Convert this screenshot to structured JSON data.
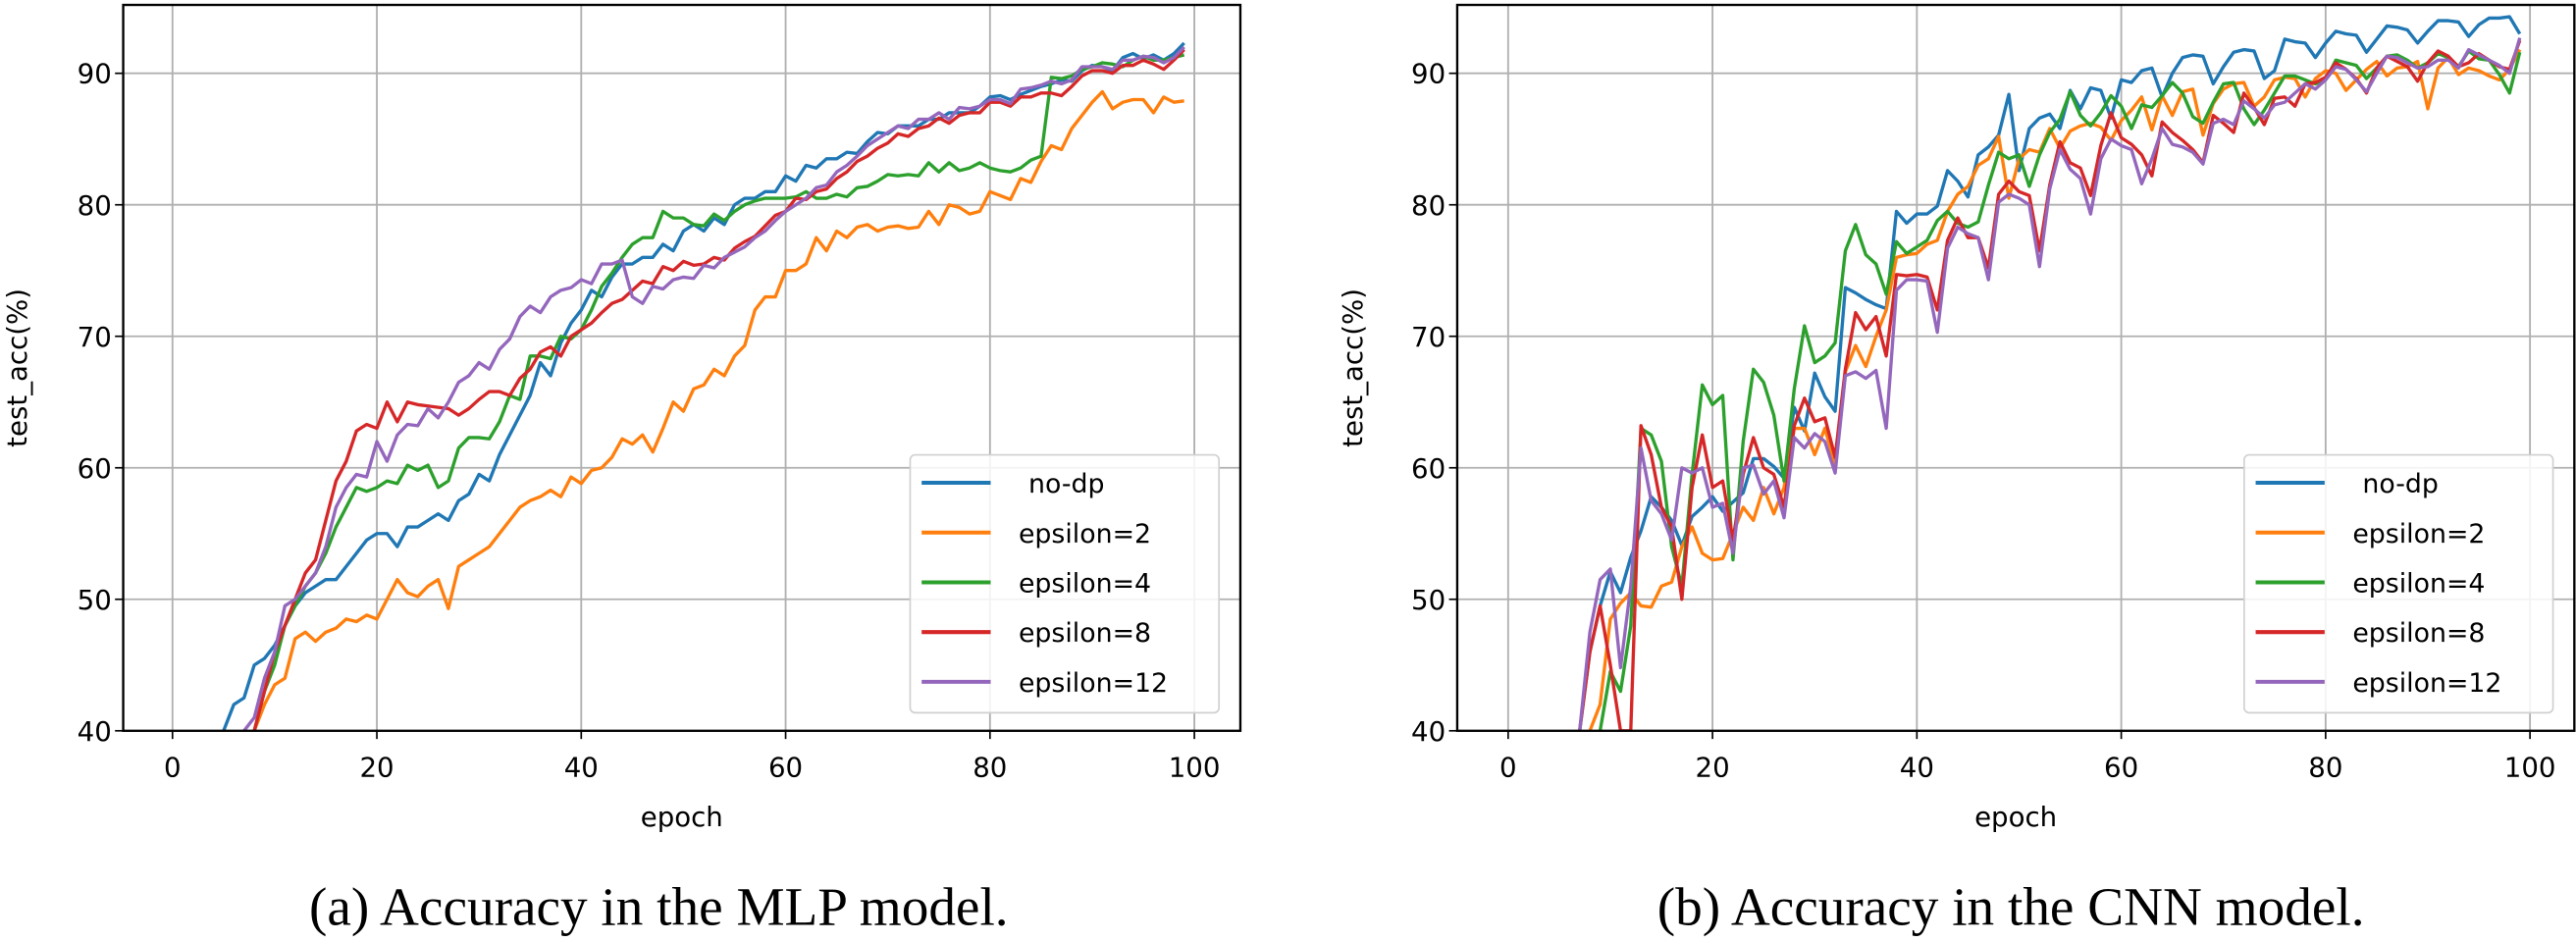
{
  "chart_data": [
    {
      "type": "line",
      "caption": "(a) Accuracy in the MLP model.",
      "xlabel": "epoch",
      "ylabel": "test_acc(%)",
      "xlim": [
        -4.95,
        103.95
      ],
      "ylim": [
        40,
        95.2
      ],
      "xticks": [
        0,
        20,
        40,
        60,
        80,
        100
      ],
      "yticks": [
        40,
        50,
        60,
        70,
        80,
        90
      ],
      "grid": true,
      "legend_position": "lower-right",
      "series": [
        {
          "name": "no-dp",
          "color": "#1f77b4",
          "start": 5,
          "values": [
            40,
            42,
            42.5,
            45,
            45.5,
            46.5,
            48,
            49.5,
            50.5,
            51,
            51.5,
            51.5,
            52.5,
            53.5,
            54.5,
            55,
            55,
            54,
            55.5,
            55.5,
            56,
            56.5,
            56,
            57.5,
            58,
            59.5,
            59,
            61,
            62.5,
            64,
            65.5,
            68,
            67,
            69.5,
            71,
            72,
            73.5,
            73,
            74.5,
            75.5,
            75.5,
            76,
            76,
            77,
            76.5,
            78,
            78.5,
            78,
            79,
            78.5,
            80,
            80.5,
            80.5,
            81,
            81,
            82.2,
            81.8,
            83,
            82.8,
            83.5,
            83.5,
            84,
            83.9,
            84.8,
            85.5,
            85.4,
            86,
            86,
            86,
            86.5,
            86.5,
            87,
            87,
            87,
            87.5,
            88.2,
            88.3,
            88,
            88.4,
            88.7,
            89,
            89.2,
            89.5,
            89.4,
            90.2,
            90.6,
            90.5,
            90.2,
            91.2,
            91.5,
            91.1,
            91.4,
            91,
            91.5,
            92.3
          ]
        },
        {
          "name": "epsilon=2",
          "color": "#ff7f0e",
          "start": 8,
          "values": [
            40,
            42,
            43.5,
            44,
            47,
            47.5,
            46.8,
            47.5,
            47.8,
            48.5,
            48.3,
            48.8,
            48.5,
            50,
            51.5,
            50.5,
            50.2,
            51,
            51.5,
            49.3,
            52.5,
            53,
            53.5,
            54,
            55,
            56,
            57,
            57.5,
            57.8,
            58.3,
            57.8,
            59.3,
            58.8,
            59.8,
            60,
            60.8,
            62.2,
            61.8,
            62.5,
            61.2,
            63,
            65,
            64.3,
            66,
            66.3,
            67.5,
            67,
            68.5,
            69.3,
            72,
            73,
            73,
            75,
            75,
            75.5,
            77.5,
            76.5,
            78,
            77.5,
            78.3,
            78.5,
            78,
            78.3,
            78.4,
            78.2,
            78.3,
            79.5,
            78.5,
            80,
            79.8,
            79.3,
            79.5,
            81,
            80.7,
            80.4,
            82,
            81.7,
            83.3,
            84.5,
            84.2,
            85.8,
            86.8,
            87.8,
            88.6,
            87.3,
            87.8,
            88,
            88,
            87,
            88.2,
            87.8,
            87.9
          ]
        },
        {
          "name": "epsilon=4",
          "color": "#2ca02c",
          "start": 8,
          "values": [
            40,
            43,
            45,
            48,
            49.5,
            51,
            52,
            53.5,
            55.5,
            57,
            58.5,
            58.2,
            58.5,
            59,
            58.8,
            60.2,
            59.8,
            60.2,
            58.5,
            59,
            61.5,
            62.3,
            62.3,
            62.2,
            63.5,
            65.5,
            65.2,
            68.5,
            68.5,
            68.3,
            70,
            69.8,
            70.5,
            72,
            73.8,
            74.8,
            76,
            77,
            77.5,
            77.5,
            79.5,
            79,
            79,
            78.5,
            78.4,
            79.3,
            78.8,
            79.5,
            80,
            80.3,
            80.5,
            80.5,
            80.5,
            80.6,
            81,
            80.5,
            80.5,
            80.8,
            80.6,
            81.3,
            81.4,
            81.8,
            82.3,
            82.2,
            82.3,
            82.2,
            83.2,
            82.5,
            83.2,
            82.6,
            82.8,
            83.2,
            82.8,
            82.6,
            82.5,
            82.8,
            83.4,
            83.7,
            89.7,
            89.6,
            89.8,
            90.3,
            90.5,
            90.8,
            90.7,
            90.5,
            91,
            91.3,
            91,
            91,
            91.2,
            91.4
          ]
        },
        {
          "name": "epsilon=8",
          "color": "#d62728",
          "start": 8,
          "values": [
            40,
            43,
            46,
            48,
            50,
            52,
            53,
            56,
            59,
            60.5,
            62.8,
            63.3,
            63,
            65,
            63.5,
            65,
            64.8,
            64.7,
            64.6,
            64.5,
            64,
            64.5,
            65.2,
            65.8,
            65.8,
            65.5,
            66.8,
            67.5,
            68.8,
            69.2,
            68.5,
            70,
            70.5,
            71,
            71.8,
            72.5,
            72.8,
            73.5,
            74.2,
            74,
            75.3,
            75,
            75.7,
            75.4,
            75.5,
            76,
            75.8,
            76.7,
            77.2,
            77.6,
            78.4,
            79.2,
            79.5,
            80.5,
            80.4,
            81,
            81.2,
            82,
            82.5,
            83.3,
            83.7,
            84.3,
            84.7,
            85.4,
            85.2,
            85.8,
            86,
            86.6,
            86.2,
            86.8,
            87,
            87,
            87.8,
            87.8,
            87.5,
            88.2,
            88.2,
            88.5,
            88.5,
            88.3,
            89,
            89.8,
            90.2,
            90.2,
            90,
            90.6,
            90.6,
            91,
            90.7,
            90.3,
            91,
            91.8
          ]
        },
        {
          "name": "epsilon=12",
          "color": "#9467bd",
          "start": 7,
          "values": [
            40,
            41,
            44,
            46,
            49.5,
            50,
            51,
            52,
            54,
            57,
            58.5,
            59.5,
            59.3,
            62,
            60.5,
            62.5,
            63.3,
            63.2,
            64.5,
            63.8,
            65,
            66.5,
            67,
            68,
            67.5,
            69,
            69.8,
            71.5,
            72.3,
            71.8,
            73,
            73.5,
            73.7,
            74.3,
            74,
            75.5,
            75.5,
            75.8,
            73,
            72.5,
            73.8,
            73.6,
            74.3,
            74.5,
            74.4,
            75.4,
            75.2,
            76,
            76.4,
            76.8,
            77.5,
            78,
            78.8,
            79.5,
            80,
            80.5,
            81.3,
            81.5,
            82.5,
            83,
            83.7,
            84.5,
            85,
            85.5,
            86,
            85.8,
            86.5,
            86.5,
            87,
            86.5,
            87.4,
            87.3,
            87.5,
            88,
            88,
            87.7,
            88.8,
            88.9,
            89.1,
            89.4,
            89.2,
            89.5,
            90.5,
            90.5,
            90.5,
            90.3,
            91,
            91,
            91.3,
            91.2,
            90.8,
            91.2,
            92
          ]
        }
      ]
    },
    {
      "type": "line",
      "caption": "(b) Accuracy in the CNN model.",
      "xlabel": "epoch",
      "ylabel": "test_acc(%)",
      "xlim": [
        -4.95,
        103.95
      ],
      "ylim": [
        40,
        95.2
      ],
      "xticks": [
        0,
        20,
        40,
        60,
        80,
        100
      ],
      "yticks": [
        40,
        50,
        60,
        70,
        80,
        90
      ],
      "grid": true,
      "legend_position": "lower-right",
      "series": [
        {
          "name": "no-dp",
          "color": "#1f77b4",
          "start": 7,
          "values": [
            40,
            46,
            49.5,
            52.1,
            50.5,
            53.2,
            55.2,
            57.8,
            57,
            56,
            54.1,
            56.3,
            57,
            57.8,
            56.7,
            57.4,
            58.1,
            60.7,
            60.7,
            60.1,
            59.2,
            64.6,
            62.8,
            67.2,
            65.4,
            64.3,
            73.7,
            73.3,
            72.8,
            72.4,
            72.1,
            79.5,
            78.6,
            79.3,
            79.3,
            79.9,
            82.6,
            81.8,
            80.6,
            83.8,
            84.4,
            85.3,
            88.4,
            82.6,
            85.8,
            86.6,
            86.9,
            85.8,
            88.7,
            87.3,
            88.9,
            88.7,
            86.6,
            89.5,
            89.3,
            90.2,
            90.4,
            88.2,
            90,
            91.2,
            91.4,
            91.3,
            89.2,
            90.5,
            91.6,
            91.8,
            91.7,
            89.6,
            90.2,
            92.6,
            92.4,
            92.3,
            91.2,
            92.3,
            93.2,
            93,
            92.9,
            91.6,
            92.6,
            93.6,
            93.5,
            93.3,
            92.3,
            93.2,
            94,
            94,
            93.9,
            92.8,
            93.7,
            94.2,
            94.2,
            94.3,
            93
          ]
        },
        {
          "name": "epsilon=2",
          "color": "#ff7f0e",
          "start": 8,
          "values": [
            40,
            42,
            48.5,
            49.7,
            50.5,
            49.5,
            49.4,
            51,
            51.3,
            54,
            55.5,
            53.5,
            53,
            53.1,
            55,
            57,
            56,
            58.5,
            56.5,
            58.5,
            63,
            63,
            61,
            63,
            60.2,
            67.3,
            69.3,
            67.7,
            70,
            72,
            76,
            76.2,
            76.3,
            77,
            77.3,
            79.5,
            80.8,
            81.4,
            83,
            83.5,
            85.2,
            80.5,
            83.5,
            84.2,
            84,
            85.8,
            84.3,
            85.6,
            86,
            86.2,
            85.9,
            84.9,
            86.4,
            87.2,
            88.2,
            85.7,
            88.3,
            86.8,
            88.6,
            88.8,
            85.3,
            87.7,
            88.8,
            89.2,
            89.3,
            87.5,
            88.2,
            89.5,
            89.7,
            89.6,
            88.2,
            89.6,
            90.2,
            90,
            88.7,
            89.5,
            90.3,
            90.9,
            89.8,
            90.4,
            90.5,
            90.9,
            87.3,
            90.4,
            91.2,
            89.9,
            90.4,
            90.2,
            89.8,
            89.5,
            90.3,
            91.8
          ]
        },
        {
          "name": "epsilon=4",
          "color": "#2ca02c",
          "start": 9,
          "values": [
            40,
            44.5,
            43,
            48,
            63,
            62.5,
            60.5,
            54,
            51,
            59.5,
            66.3,
            64.8,
            65.5,
            53,
            62,
            67.5,
            66.5,
            64,
            59,
            66,
            70.8,
            68,
            68.5,
            69.5,
            76.5,
            78.5,
            76.2,
            75.5,
            73.2,
            77.2,
            76.3,
            76.8,
            77.3,
            78.8,
            79.5,
            78.6,
            78.3,
            78.7,
            81.5,
            84,
            83.5,
            83.8,
            81.4,
            83.8,
            85.5,
            86.5,
            88.6,
            86.8,
            86,
            87,
            88.3,
            87.5,
            85.8,
            87.6,
            87.4,
            88.3,
            89.3,
            88.5,
            86.7,
            86.2,
            87.8,
            89.2,
            89.3,
            87.3,
            86.1,
            87.2,
            88.5,
            89.8,
            89.8,
            89.5,
            89.2,
            89.5,
            91,
            90.8,
            90.6,
            89.6,
            90.4,
            91.3,
            91.4,
            91,
            90.4,
            90.8,
            91.5,
            91.2,
            90.5,
            91.7,
            91.1,
            91,
            89.9,
            88.5,
            91.6
          ]
        },
        {
          "name": "epsilon=8",
          "color": "#d62728",
          "start": 7,
          "values": [
            40,
            46,
            49.5,
            45,
            40,
            40,
            63.2,
            61,
            57,
            55.5,
            50,
            58.5,
            62.5,
            58.5,
            59,
            54.5,
            59.5,
            62.3,
            60,
            59.5,
            57,
            63.2,
            65.3,
            63.5,
            63.8,
            60.8,
            67.5,
            71.8,
            70.5,
            71.5,
            68.5,
            74.7,
            74.6,
            74.7,
            74.5,
            72,
            77.3,
            79,
            77.5,
            77.5,
            75.2,
            80.8,
            81.8,
            81,
            80.7,
            76.5,
            81.5,
            84.8,
            83.2,
            82.8,
            80.7,
            84.5,
            87,
            85.1,
            84.6,
            83.8,
            82.2,
            86.3,
            85.5,
            84.9,
            84.2,
            83.2,
            86.8,
            86.2,
            85.5,
            88.5,
            87.4,
            86.1,
            88.1,
            88.2,
            87.5,
            89.2,
            89.3,
            89.7,
            90.8,
            90.3,
            89.6,
            88.5,
            90.4,
            91.3,
            90.9,
            90.5,
            89.4,
            90.8,
            91.7,
            91.3,
            90.5,
            90.8,
            91.5,
            91,
            90.5,
            90.3,
            92.5
          ]
        },
        {
          "name": "epsilon=12",
          "color": "#9467bd",
          "start": 7,
          "values": [
            40,
            47.5,
            51.5,
            52.3,
            44.8,
            51,
            61.5,
            57.5,
            56.5,
            54.5,
            60,
            59.6,
            60,
            57,
            57.3,
            53.5,
            60,
            60.2,
            58,
            59,
            56.2,
            62.3,
            61.5,
            62.6,
            62,
            59.6,
            67,
            67.3,
            66.8,
            67.4,
            63,
            73.5,
            74.3,
            74.3,
            74.2,
            70.3,
            76.7,
            78.3,
            77.8,
            77.5,
            74.3,
            80.2,
            80.8,
            80.5,
            80,
            75.3,
            81.2,
            84.2,
            82.7,
            82,
            79.3,
            83.5,
            85,
            84.5,
            84.2,
            81.6,
            83.5,
            85.8,
            84.6,
            84.4,
            84,
            83.1,
            86.2,
            86.5,
            86.1,
            87.9,
            87.3,
            86.6,
            87.6,
            87.8,
            88.5,
            89.2,
            88.8,
            89.5,
            90.5,
            90.3,
            89.5,
            88.6,
            90,
            91.3,
            91.2,
            90.8,
            90.4,
            90.5,
            91,
            91,
            90.4,
            91.8,
            91.4,
            91,
            90.6,
            90,
            92.7
          ]
        }
      ]
    }
  ]
}
